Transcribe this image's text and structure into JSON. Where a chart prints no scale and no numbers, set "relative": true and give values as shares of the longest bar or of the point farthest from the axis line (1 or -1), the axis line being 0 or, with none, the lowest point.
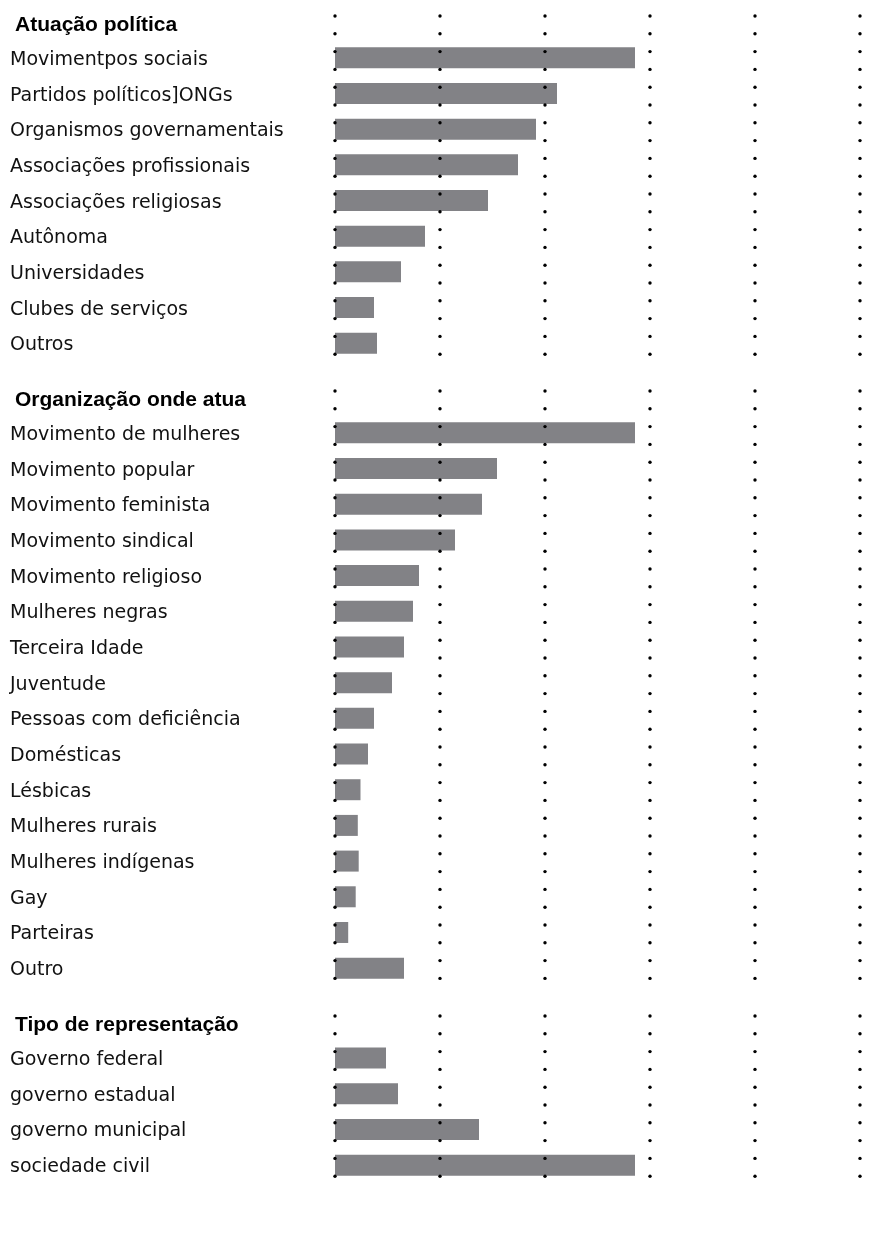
{
  "chart_data": [
    {
      "type": "bar",
      "orientation": "horizontal",
      "relative": true,
      "title": "Atuação política",
      "categories": [
        "Movimentpos sociais",
        "Partidos políticos]ONGs",
        "Organismos governamentais",
        "Associações profissionais",
        "Associações religiosas",
        "Autônoma",
        "Universidades",
        "Clubes de serviços",
        "Outros"
      ],
      "values": [
        1,
        0.74,
        0.67,
        0.61,
        0.51,
        0.3,
        0.22,
        0.13,
        0.14
      ],
      "color": "#828286"
    },
    {
      "type": "bar",
      "orientation": "horizontal",
      "relative": true,
      "title": "Organização onde atua",
      "categories": [
        "Movimento de mulheres",
        "Movimento popular",
        "Movimento feminista",
        "Movimento sindical",
        "Movimento religioso",
        "Mulheres negras",
        "Terceira Idade",
        "Juventude",
        "Pessoas com deficiência",
        "Domésticas",
        "Lésbicas",
        "Mulheres rurais",
        "Mulheres indígenas",
        "Gay",
        "Parteiras",
        "Outro"
      ],
      "values": [
        1,
        0.54,
        0.49,
        0.4,
        0.28,
        0.26,
        0.23,
        0.19,
        0.13,
        0.11,
        0.085,
        0.076,
        0.079,
        0.069,
        0.044,
        0.23
      ],
      "color": "#828286"
    },
    {
      "type": "bar",
      "orientation": "horizontal",
      "relative": true,
      "title": "Tipo de representação",
      "categories": [
        "Governo federal",
        "governo estadual",
        "governo municipal",
        "sociedade civil"
      ],
      "values": [
        0.17,
        0.21,
        0.48,
        1
      ],
      "color": "#828286"
    }
  ]
}
